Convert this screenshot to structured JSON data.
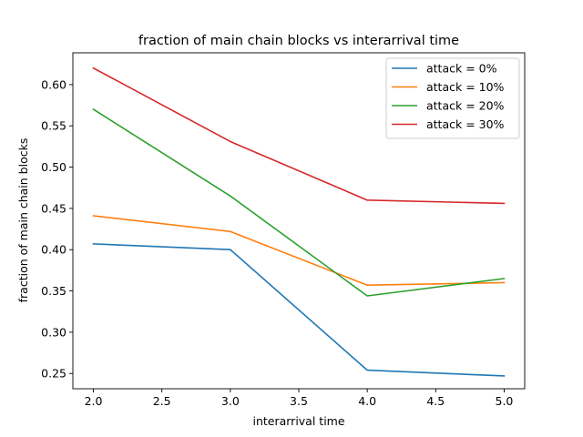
{
  "chart_data": {
    "type": "line",
    "title": "fraction of main chain blocks vs interarrival time",
    "xlabel": "interarrival time",
    "ylabel": "fraction of main chain blocks",
    "x": [
      2.0,
      3.0,
      4.0,
      5.0
    ],
    "xlim": [
      1.85,
      5.15
    ],
    "ylim": [
      0.2315,
      0.6385
    ],
    "xticks": [
      "2.0",
      "2.5",
      "3.0",
      "3.5",
      "4.0",
      "4.5",
      "5.0"
    ],
    "yticks": [
      "0.25",
      "0.30",
      "0.35",
      "0.40",
      "0.45",
      "0.50",
      "0.55",
      "0.60"
    ],
    "grid": false,
    "legend_position": "top-right",
    "series": [
      {
        "name": "attack = 0%",
        "color": "#1f77b4",
        "values": [
          0.407,
          0.4,
          0.254,
          0.247
        ]
      },
      {
        "name": "attack = 10%",
        "color": "#ff7f0e",
        "values": [
          0.441,
          0.422,
          0.357,
          0.36
        ]
      },
      {
        "name": "attack = 20%",
        "color": "#2ca02c",
        "values": [
          0.57,
          0.465,
          0.344,
          0.365
        ]
      },
      {
        "name": "attack = 30%",
        "color": "#d62728",
        "values": [
          0.62,
          0.531,
          0.46,
          0.456
        ]
      }
    ]
  }
}
